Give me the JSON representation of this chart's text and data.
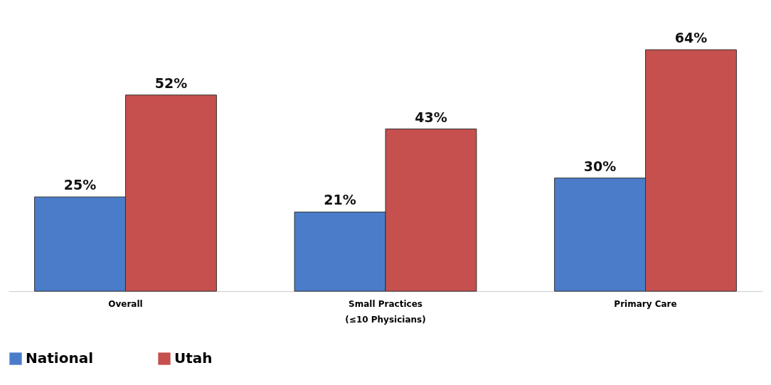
{
  "chart_data": {
    "type": "bar",
    "categories": [
      "Overall",
      "Small Practices\n(≤10 Physicians)",
      "Primary Care"
    ],
    "series": [
      {
        "name": "National",
        "color": "#4a7cc9",
        "values": [
          25,
          21,
          30
        ],
        "value_labels": [
          "25%",
          "21%",
          "30%"
        ]
      },
      {
        "name": "Utah",
        "color": "#c5504e",
        "values": [
          52,
          43,
          64
        ],
        "value_labels": [
          "52%",
          "43%",
          "64%"
        ]
      }
    ],
    "legend": "bottom",
    "tick_labels": "x",
    "grid": false
  }
}
